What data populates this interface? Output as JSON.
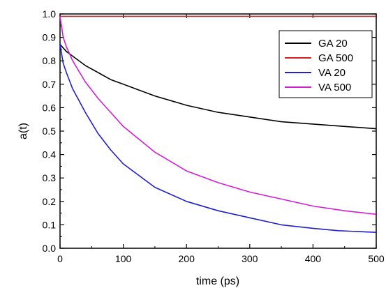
{
  "chart_data": {
    "type": "line",
    "xlabel": "time (ps)",
    "ylabel": "a(t)",
    "xlim": [
      0,
      500
    ],
    "ylim": [
      0.0,
      1.0
    ],
    "xticks": [
      0,
      100,
      200,
      300,
      400,
      500
    ],
    "xtick_labels": [
      "0",
      "100",
      "200",
      "300",
      "400",
      "500"
    ],
    "yticks": [
      0.0,
      0.1,
      0.2,
      0.3,
      0.4,
      0.5,
      0.6,
      0.7,
      0.8,
      0.9,
      1.0
    ],
    "ytick_labels": [
      "0.0",
      "0.1",
      "0.2",
      "0.3",
      "0.4",
      "0.5",
      "0.6",
      "0.7",
      "0.8",
      "0.9",
      "1.0"
    ],
    "grid": false,
    "legend_position": "top-right",
    "series": [
      {
        "name": "GA 20",
        "color": "#000000",
        "x": [
          0,
          10,
          20,
          40,
          60,
          80,
          100,
          150,
          200,
          250,
          300,
          350,
          400,
          450,
          500
        ],
        "y": [
          0.87,
          0.84,
          0.82,
          0.78,
          0.75,
          0.72,
          0.7,
          0.65,
          0.61,
          0.58,
          0.56,
          0.54,
          0.53,
          0.52,
          0.51
        ]
      },
      {
        "name": "GA 500",
        "color": "#d42020",
        "x": [
          0,
          100,
          200,
          300,
          400,
          500
        ],
        "y": [
          0.99,
          0.99,
          0.99,
          0.99,
          0.99,
          0.99
        ]
      },
      {
        "name": "VA 20",
        "color": "#2020c8",
        "x": [
          0,
          5,
          10,
          20,
          30,
          40,
          60,
          80,
          100,
          150,
          200,
          250,
          300,
          350,
          400,
          440,
          500
        ],
        "y": [
          0.87,
          0.79,
          0.75,
          0.68,
          0.63,
          0.58,
          0.49,
          0.42,
          0.36,
          0.26,
          0.2,
          0.16,
          0.13,
          0.1,
          0.085,
          0.075,
          0.068
        ]
      },
      {
        "name": "VA 500",
        "color": "#d020d0",
        "x": [
          0,
          5,
          10,
          20,
          40,
          60,
          80,
          100,
          150,
          200,
          250,
          300,
          350,
          400,
          450,
          500
        ],
        "y": [
          0.99,
          0.9,
          0.86,
          0.8,
          0.71,
          0.64,
          0.58,
          0.52,
          0.41,
          0.33,
          0.28,
          0.24,
          0.21,
          0.18,
          0.16,
          0.145
        ]
      }
    ]
  }
}
